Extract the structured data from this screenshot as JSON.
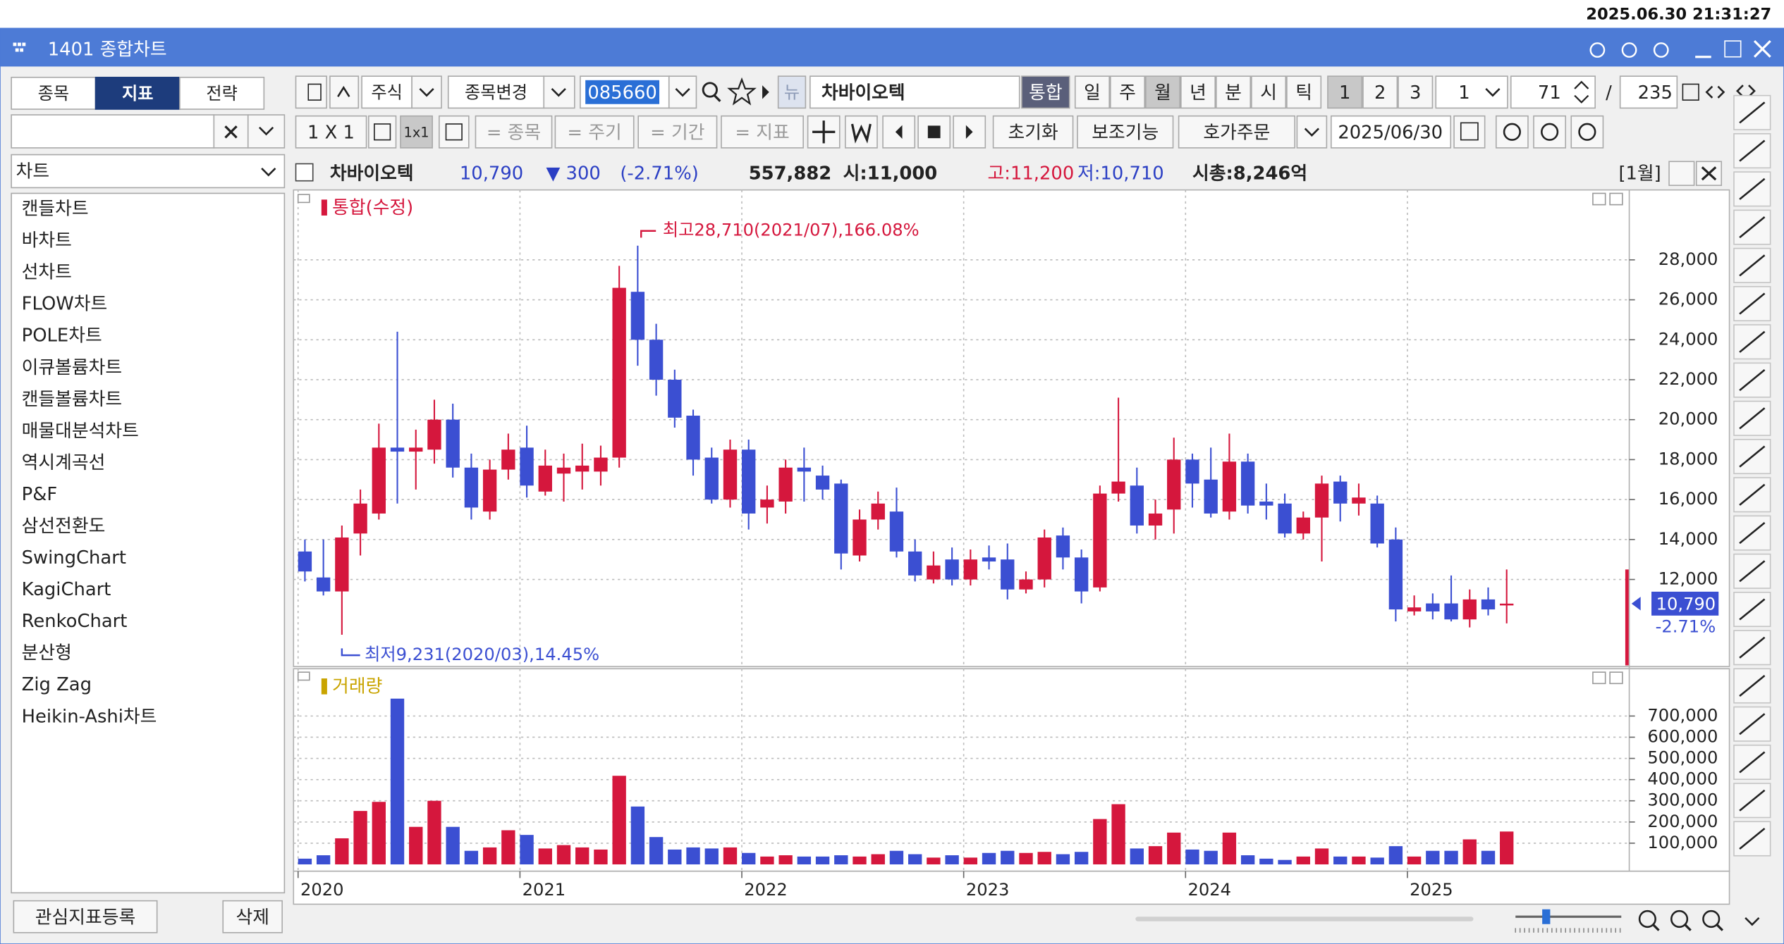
{
  "timestamp": "2025.06.30 21:31:27",
  "window": {
    "title": "1401 종합차트"
  },
  "sidebar": {
    "tabs": [
      "종목",
      "지표",
      "전략"
    ],
    "dropdown": "차트",
    "items": [
      "캔들차트",
      "바차트",
      "선차트",
      "FLOW차트",
      "POLE차트",
      "이큐볼륨차트",
      "캔들볼륨차트",
      "매물대분석차트",
      "역시계곡선",
      "P&F",
      "삼선전환도",
      "SwingChart",
      "KagiChart",
      "RenkoChart",
      "분산형",
      "Zig Zag",
      "Heikin-Ashi차트"
    ],
    "buttons": [
      "관심지표등록",
      "삭제"
    ]
  },
  "toolbar": {
    "market": "주식",
    "change_stock": "종목변경",
    "code": "085660",
    "news": "뉴",
    "stock_name": "차바이오텍",
    "integrated": "통합",
    "periods": [
      "일",
      "주",
      "월",
      "년",
      "분",
      "시",
      "틱"
    ],
    "layouts": [
      "1",
      "2",
      "3"
    ],
    "interval": "1",
    "count": "71",
    "separator": "/",
    "total": "235",
    "grid": "1 X 1",
    "grid_small": "1x1",
    "sync": [
      "= 종목",
      "= 주기",
      "= 기간",
      "= 지표"
    ],
    "buttons": [
      "초기화",
      "보조기능",
      "호가주문"
    ],
    "date": "2025/06/30"
  },
  "info": {
    "name": "차바이오텍",
    "price": "10,790",
    "change": "▼ 300",
    "rate": "(-2.71%)",
    "volume": "557,882",
    "open": "시:11,000",
    "high": "고:11,200",
    "low": "저:10,710",
    "market_cap": "시총:8,246억",
    "period": "[1월]"
  },
  "chart_data": {
    "type": "candlestick",
    "title": "통합(수정)",
    "open": [
      13400,
      12100,
      11400,
      14300,
      15300,
      18600,
      18400,
      18500,
      20000,
      17600,
      15400,
      17500,
      18600,
      16400,
      17300,
      17400,
      17400,
      18100,
      26400,
      24000,
      22000,
      20200,
      18100,
      16000,
      18500,
      15600,
      15900,
      17600,
      17200,
      16800,
      13200,
      15000,
      15400,
      13400,
      12000,
      13000,
      12000,
      13100,
      13000,
      11500,
      12000,
      14200,
      13100,
      11600,
      16300,
      16700,
      14700,
      15500,
      18000,
      17000,
      15400,
      17900,
      15900,
      15800,
      14300,
      15100,
      16900,
      15800,
      15800,
      14000,
      10400,
      10800,
      10800,
      10000,
      11000,
      10700
    ],
    "high": [
      14000,
      14000,
      14700,
      16500,
      19800,
      24400,
      19500,
      21000,
      20800,
      18300,
      18000,
      19300,
      19700,
      18500,
      18300,
      18800,
      18700,
      27700,
      28710,
      24800,
      22500,
      20500,
      18600,
      19000,
      19000,
      16700,
      18000,
      18600,
      17700,
      17000,
      15500,
      16400,
      16600,
      14000,
      13400,
      13600,
      13500,
      13700,
      13800,
      12400,
      14500,
      14600,
      13500,
      16700,
      21100,
      17600,
      16000,
      19100,
      18300,
      18600,
      19300,
      18300,
      16800,
      16300,
      15400,
      17200,
      17200,
      16800,
      16200,
      14600,
      11200,
      11300,
      12200,
      11500,
      11600,
      12500
    ],
    "low": [
      11900,
      11200,
      9231,
      13200,
      15000,
      15800,
      16500,
      17800,
      17100,
      15000,
      15000,
      17000,
      16100,
      16200,
      15900,
      16500,
      16700,
      17600,
      22700,
      21200,
      19600,
      17200,
      15800,
      15600,
      14500,
      14800,
      15300,
      15900,
      16000,
      12500,
      12900,
      14500,
      13100,
      11900,
      11800,
      11700,
      11700,
      12500,
      11000,
      11300,
      11600,
      12500,
      10800,
      11400,
      15900,
      14300,
      14000,
      14300,
      15600,
      15100,
      15000,
      15300,
      15000,
      14100,
      14000,
      12900,
      14900,
      15200,
      13600,
      9900,
      10200,
      10000,
      9900,
      9600,
      10200,
      9800
    ],
    "close": [
      12400,
      11400,
      14100,
      15800,
      18600,
      18400,
      18600,
      20000,
      17600,
      15600,
      17500,
      18500,
      16700,
      17700,
      17600,
      17700,
      18100,
      26600,
      24000,
      22000,
      20100,
      18000,
      16000,
      18500,
      15300,
      16000,
      17600,
      17400,
      16500,
      13300,
      15000,
      15800,
      13400,
      12200,
      12700,
      12000,
      13000,
      12900,
      11500,
      12000,
      14100,
      13100,
      11400,
      16300,
      16900,
      14700,
      15300,
      18000,
      16800,
      15300,
      17900,
      15700,
      15700,
      14300,
      15100,
      16800,
      15800,
      16100,
      13800,
      10500,
      10600,
      10400,
      10000,
      11000,
      10500,
      10790
    ],
    "up_color": "#d5173d",
    "down_color": "#3b4fd2",
    "grid": true,
    "ylim": [
      7700,
      31500
    ],
    "yticks": [
      {
        "value": 12000,
        "label": "12,000"
      },
      {
        "value": 14000,
        "label": "14,000"
      },
      {
        "value": 16000,
        "label": "16,000"
      },
      {
        "value": 18000,
        "label": "18,000"
      },
      {
        "value": 20000,
        "label": "20,000"
      },
      {
        "value": 22000,
        "label": "22,000"
      },
      {
        "value": 24000,
        "label": "24,000"
      },
      {
        "value": 26000,
        "label": "26,000"
      },
      {
        "value": 28000,
        "label": "28,000"
      }
    ],
    "xticks": [
      {
        "value": 0,
        "label": "2020"
      },
      {
        "value": 12,
        "label": "2021"
      },
      {
        "value": 24,
        "label": "2022"
      },
      {
        "value": 36,
        "label": "2023"
      },
      {
        "value": 48,
        "label": "2024"
      },
      {
        "value": 60,
        "label": "2025"
      }
    ],
    "annotations": [
      {
        "text": "최고28,710(2021/07),166.08%",
        "index": 18
      },
      {
        "text": "최저9,231(2020/03),14.45%",
        "index": 2
      }
    ],
    "last_label": "10,790",
    "last_change": "-2.71%",
    "volume": {
      "title": "거래량",
      "color": "#c9a400",
      "values": [
        27000,
        43000,
        123000,
        252000,
        295000,
        782000,
        177000,
        300000,
        177000,
        64000,
        80000,
        161000,
        139000,
        75000,
        91000,
        80000,
        70000,
        418000,
        273000,
        129000,
        70000,
        80000,
        75000,
        80000,
        54000,
        37000,
        43000,
        37000,
        37000,
        43000,
        37000,
        48000,
        64000,
        48000,
        32000,
        43000,
        32000,
        54000,
        64000,
        54000,
        59000,
        48000,
        59000,
        214000,
        284000,
        75000,
        86000,
        150000,
        70000,
        64000,
        150000,
        43000,
        27000,
        21000,
        37000,
        75000,
        37000,
        37000,
        32000,
        86000,
        37000,
        64000,
        64000,
        118000,
        64000,
        155000
      ],
      "ylim": [
        0,
        880000
      ],
      "yticks": [
        {
          "value": 100000,
          "label": "100,000"
        },
        {
          "value": 200000,
          "label": "200,000"
        },
        {
          "value": 300000,
          "label": "300,000"
        },
        {
          "value": 400000,
          "label": "400,000"
        },
        {
          "value": 500000,
          "label": "500,000"
        },
        {
          "value": 600000,
          "label": "600,000"
        },
        {
          "value": 700000,
          "label": "700,000"
        }
      ]
    }
  }
}
